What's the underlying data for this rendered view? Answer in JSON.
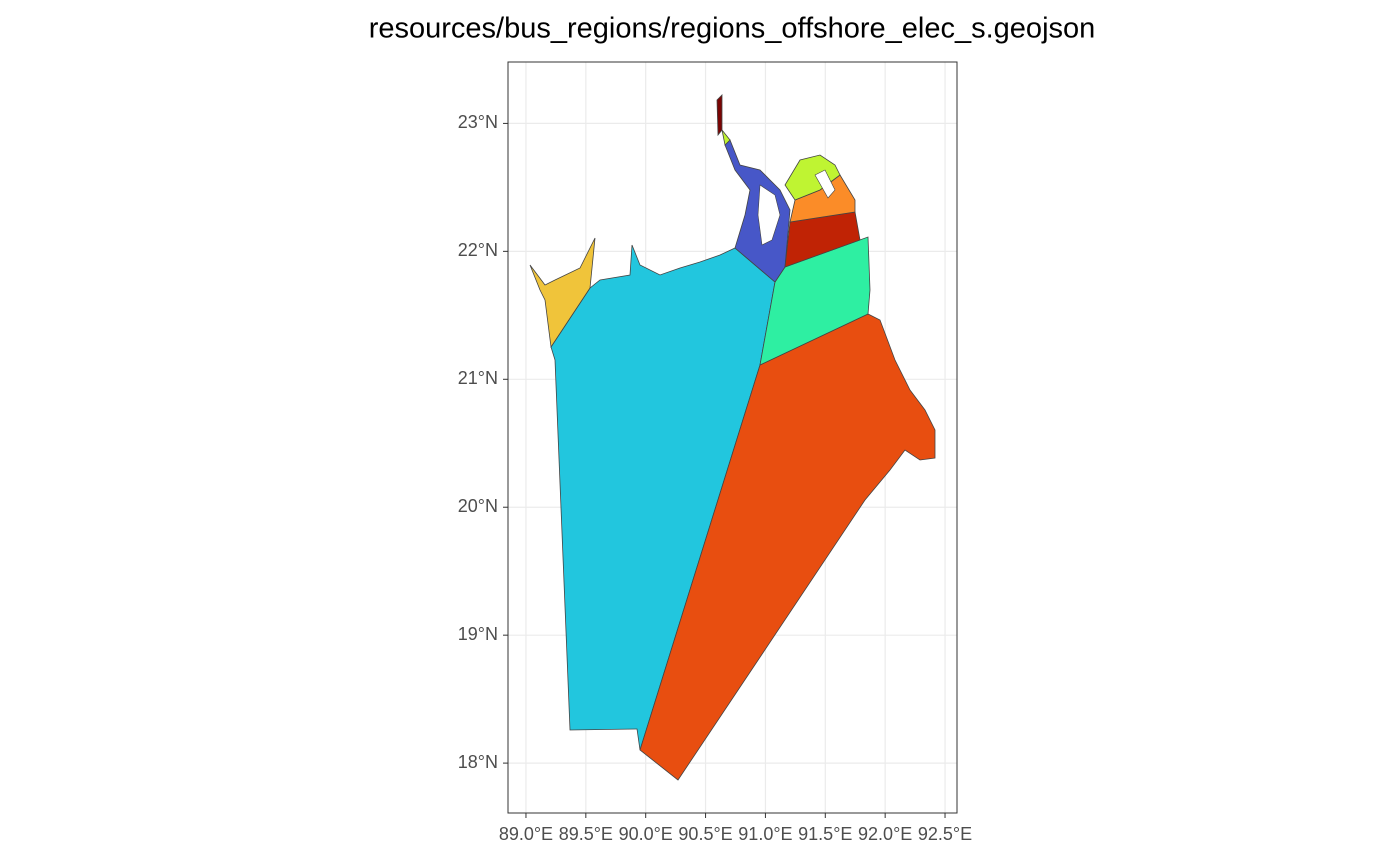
{
  "chart_data": {
    "type": "map",
    "title": "resources/bus_regions/regions_offshore_elec_s.geojson",
    "xlim": [
      88.85,
      92.6
    ],
    "ylim": [
      17.61,
      23.48
    ],
    "xticks": [
      {
        "value": 89.0,
        "label": "89.0°E"
      },
      {
        "value": 89.5,
        "label": "89.5°E"
      },
      {
        "value": 90.0,
        "label": "90.0°E"
      },
      {
        "value": 90.5,
        "label": "90.5°E"
      },
      {
        "value": 91.0,
        "label": "91.0°E"
      },
      {
        "value": 91.5,
        "label": "91.5°E"
      },
      {
        "value": 92.0,
        "label": "92.0°E"
      },
      {
        "value": 92.5,
        "label": "92.5°E"
      }
    ],
    "yticks": [
      {
        "value": 18,
        "label": "18°N"
      },
      {
        "value": 19,
        "label": "19°N"
      },
      {
        "value": 20,
        "label": "20°N"
      },
      {
        "value": 21,
        "label": "21°N"
      },
      {
        "value": 22,
        "label": "22°N"
      },
      {
        "value": 23,
        "label": "23°N"
      }
    ],
    "grid": true
  }
}
